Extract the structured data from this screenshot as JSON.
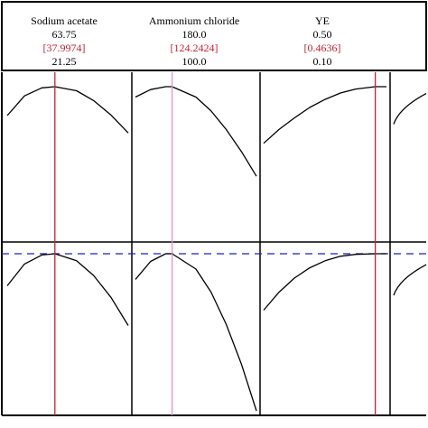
{
  "colors": {
    "curve": "#000000",
    "frame": "#000000",
    "current_line": "#cc1f2e",
    "current_line_light": "#e88fc8",
    "current_text": "#cc1f2e",
    "response_ref": "#1a1fcc"
  },
  "chart_data": {
    "type": "line",
    "title": "",
    "description_free": true,
    "factors": [
      {
        "name": "Sodium acetate",
        "high": "63.75",
        "current": "[37.9974]",
        "low": "21.25",
        "range": [
          21.25,
          63.75
        ],
        "current_value": 37.9974
      },
      {
        "name": "Ammonium chloride",
        "high": "180.0",
        "current": "[124.2424]",
        "low": "100.0",
        "range": [
          100.0,
          180.0
        ],
        "current_value": 124.2424
      },
      {
        "name": "YE",
        "high": "0.50",
        "current": "[0.4636]",
        "low": "0.10",
        "range": [
          0.1,
          0.5
        ],
        "current_value": 0.4636
      }
    ],
    "rows": [
      {
        "series": [
          {
            "x": [
              21.25,
              27.3,
              33.4,
              37.9974,
              45.6,
              51.6,
              57.7,
              63.75
            ],
            "y": [
              0.5,
              0.84,
              0.98,
              1.0,
              0.93,
              0.76,
              0.51,
              0.2
            ]
          },
          {
            "x": [
              100,
              110,
              120,
              124.24,
              140,
              150,
              160,
              170,
              180
            ],
            "y": [
              0.82,
              0.95,
              1.0,
              1.0,
              0.82,
              0.58,
              0.26,
              -0.12,
              -0.55
            ]
          },
          {
            "x": [
              0.1,
              0.15,
              0.2,
              0.25,
              0.3,
              0.35,
              0.4,
              0.4636,
              0.5
            ],
            "y": [
              0.02,
              0.26,
              0.46,
              0.64,
              0.78,
              0.89,
              0.96,
              1.0,
              1.0
            ]
          }
        ]
      },
      {
        "reference_y": 1.0,
        "series": [
          {
            "x": [
              21.25,
              27.3,
              33.4,
              37.9974,
              45.6,
              51.6,
              57.7,
              63.75
            ],
            "y": [
              0.5,
              0.84,
              0.98,
              1.0,
              0.89,
              0.66,
              0.32,
              -0.12
            ]
          },
          {
            "x": [
              100,
              110,
              120,
              124.24,
              140,
              150,
              160,
              170,
              180
            ],
            "y": [
              0.6,
              0.88,
              1.0,
              1.0,
              0.76,
              0.4,
              -0.1,
              -0.72,
              -1.45
            ]
          },
          {
            "x": [
              0.1,
              0.15,
              0.2,
              0.25,
              0.3,
              0.35,
              0.4,
              0.4636,
              0.5
            ],
            "y": [
              0.12,
              0.4,
              0.62,
              0.78,
              0.89,
              0.96,
              0.99,
              1.0,
              1.0
            ]
          }
        ]
      }
    ],
    "partial_fourth_column": [
      {
        "y_start": 0.35
      },
      {
        "y_start": 0.35
      }
    ]
  }
}
